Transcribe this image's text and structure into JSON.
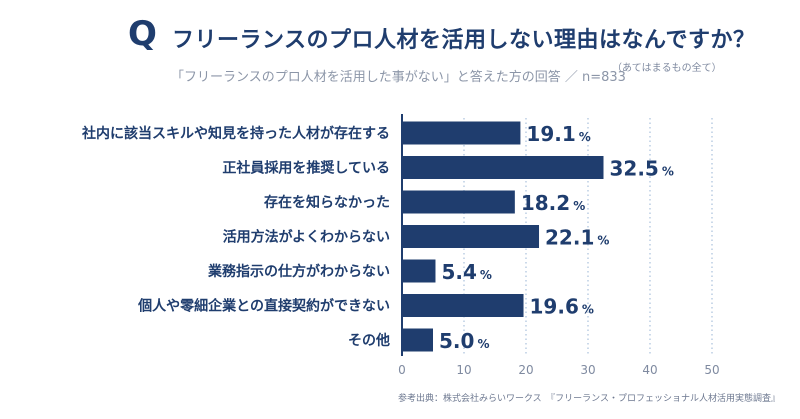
{
  "header": {
    "q_mark": "Q",
    "title": "フリーランスのプロ人材を活用しない理由はなんですか？",
    "title_note": "（あてはまるもの全て）",
    "subtitle": "「フリーランスのプロ人材を活用した事がない」と答えた方の回答 ／ n=833"
  },
  "source": "参考出典：株式会社みらいワークス　『フリーランス・プロフェッショナル人材活用実態調査』",
  "colors": {
    "bar": "#1f3d6e",
    "text": "#1f3d6e",
    "grid": "#a9c0dc",
    "axis": "#1f3d6e",
    "tick": "#7f8aa0"
  },
  "chart_data": {
    "type": "bar",
    "orientation": "horizontal",
    "categories": [
      "社内に該当スキルや知見を持った人材が存在する",
      "正社員採用を推奨している",
      "存在を知らなかった",
      "活用方法がよくわからない",
      "業務指示の仕方がわからない",
      "個人や零細企業との直接契約ができない",
      "その他"
    ],
    "values": [
      19.1,
      32.5,
      18.2,
      22.1,
      5.4,
      19.6,
      5.0
    ],
    "value_labels": [
      "19.1",
      "32.5",
      "18.2",
      "22.1",
      "5.4",
      "19.6",
      "5.0"
    ],
    "unit": "%",
    "xlim": [
      0,
      50
    ],
    "xticks": [
      "0",
      "10",
      "20",
      "30",
      "40",
      "50"
    ],
    "grid": true,
    "grid_style": "dotted vertical"
  }
}
